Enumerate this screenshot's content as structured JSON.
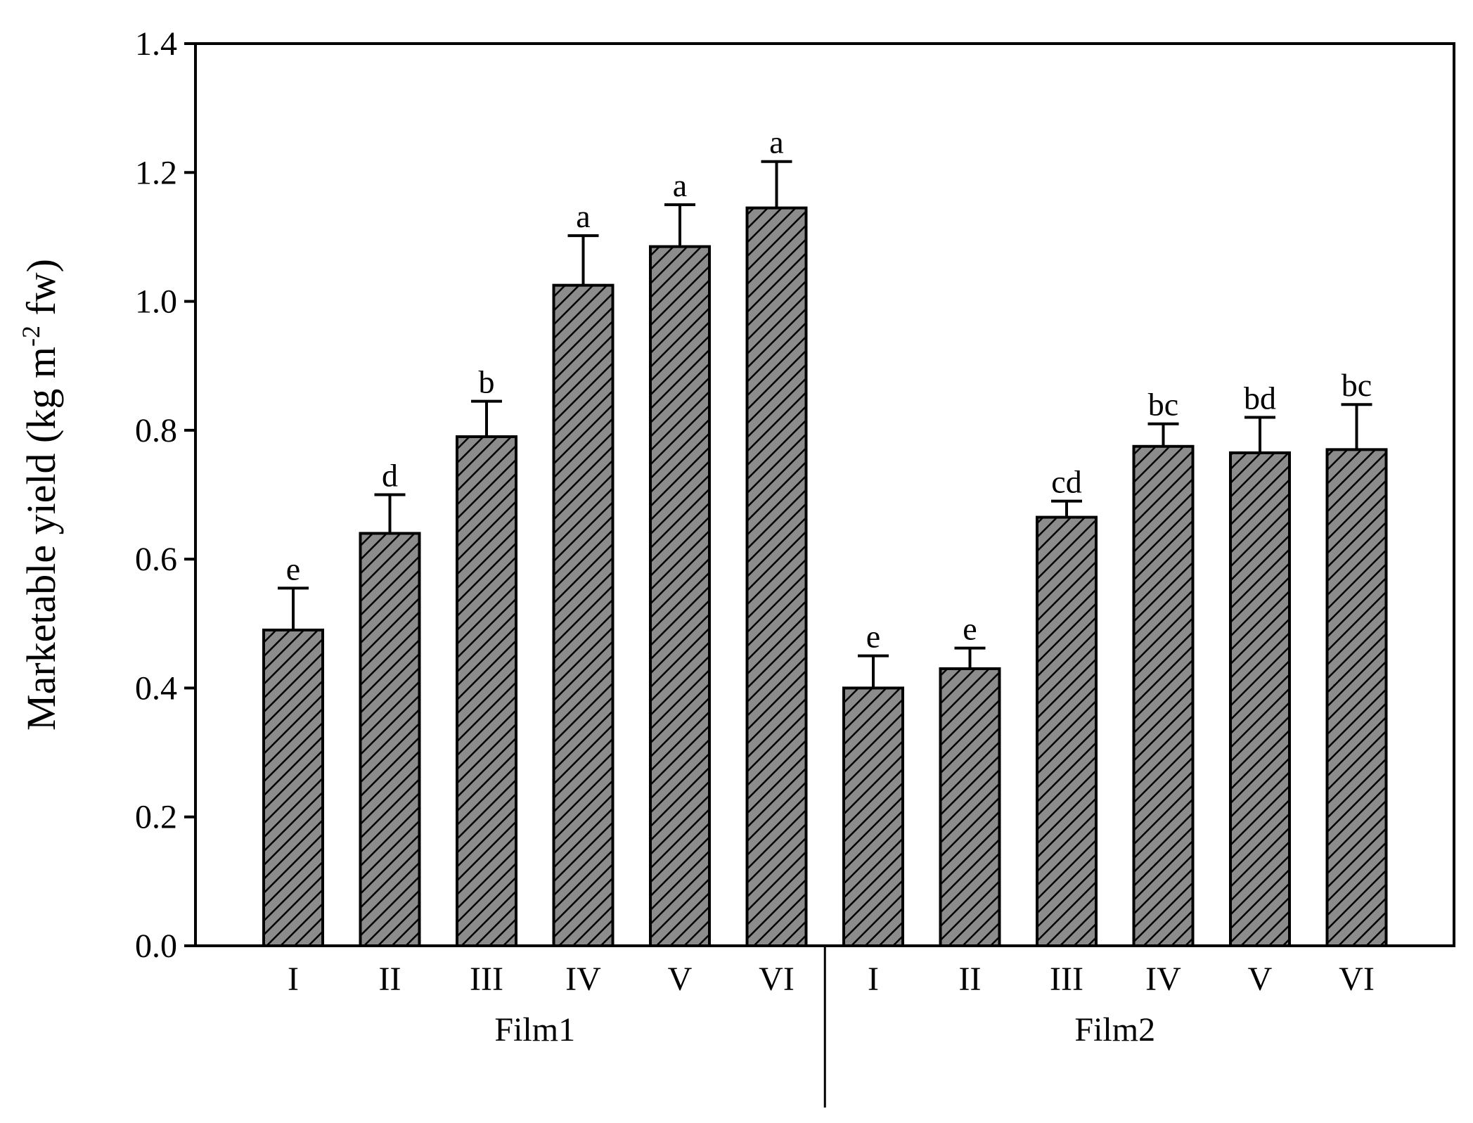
{
  "chart_data": {
    "type": "bar",
    "ylabel": {
      "pre": "Marketable yield (kg m",
      "sup": "-2",
      "post": " fw)"
    },
    "ylim": [
      0,
      1.4
    ],
    "yticks": [
      "0.0",
      "0.2",
      "0.4",
      "0.6",
      "0.8",
      "1.0",
      "1.2",
      "1.4"
    ],
    "groups": [
      {
        "name": "Film1",
        "categories": [
          "I",
          "II",
          "III",
          "IV",
          "V",
          "VI"
        ],
        "values": [
          0.49,
          0.64,
          0.79,
          1.025,
          1.085,
          1.145
        ],
        "errors": [
          0.065,
          0.06,
          0.055,
          0.077,
          0.065,
          0.072
        ],
        "letters": [
          "e",
          "d",
          "b",
          "a",
          "a",
          "a"
        ]
      },
      {
        "name": "Film2",
        "categories": [
          "I",
          "II",
          "III",
          "IV",
          "V",
          "VI"
        ],
        "values": [
          0.4,
          0.43,
          0.665,
          0.775,
          0.765,
          0.77
        ],
        "errors": [
          0.05,
          0.032,
          0.025,
          0.035,
          0.055,
          0.07
        ],
        "letters": [
          "e",
          "e",
          "cd",
          "bc",
          "bd",
          "bc"
        ]
      }
    ],
    "bar_fill": "#8c8c8c",
    "hatch": "diagonal",
    "grid": false,
    "legend": "none"
  }
}
